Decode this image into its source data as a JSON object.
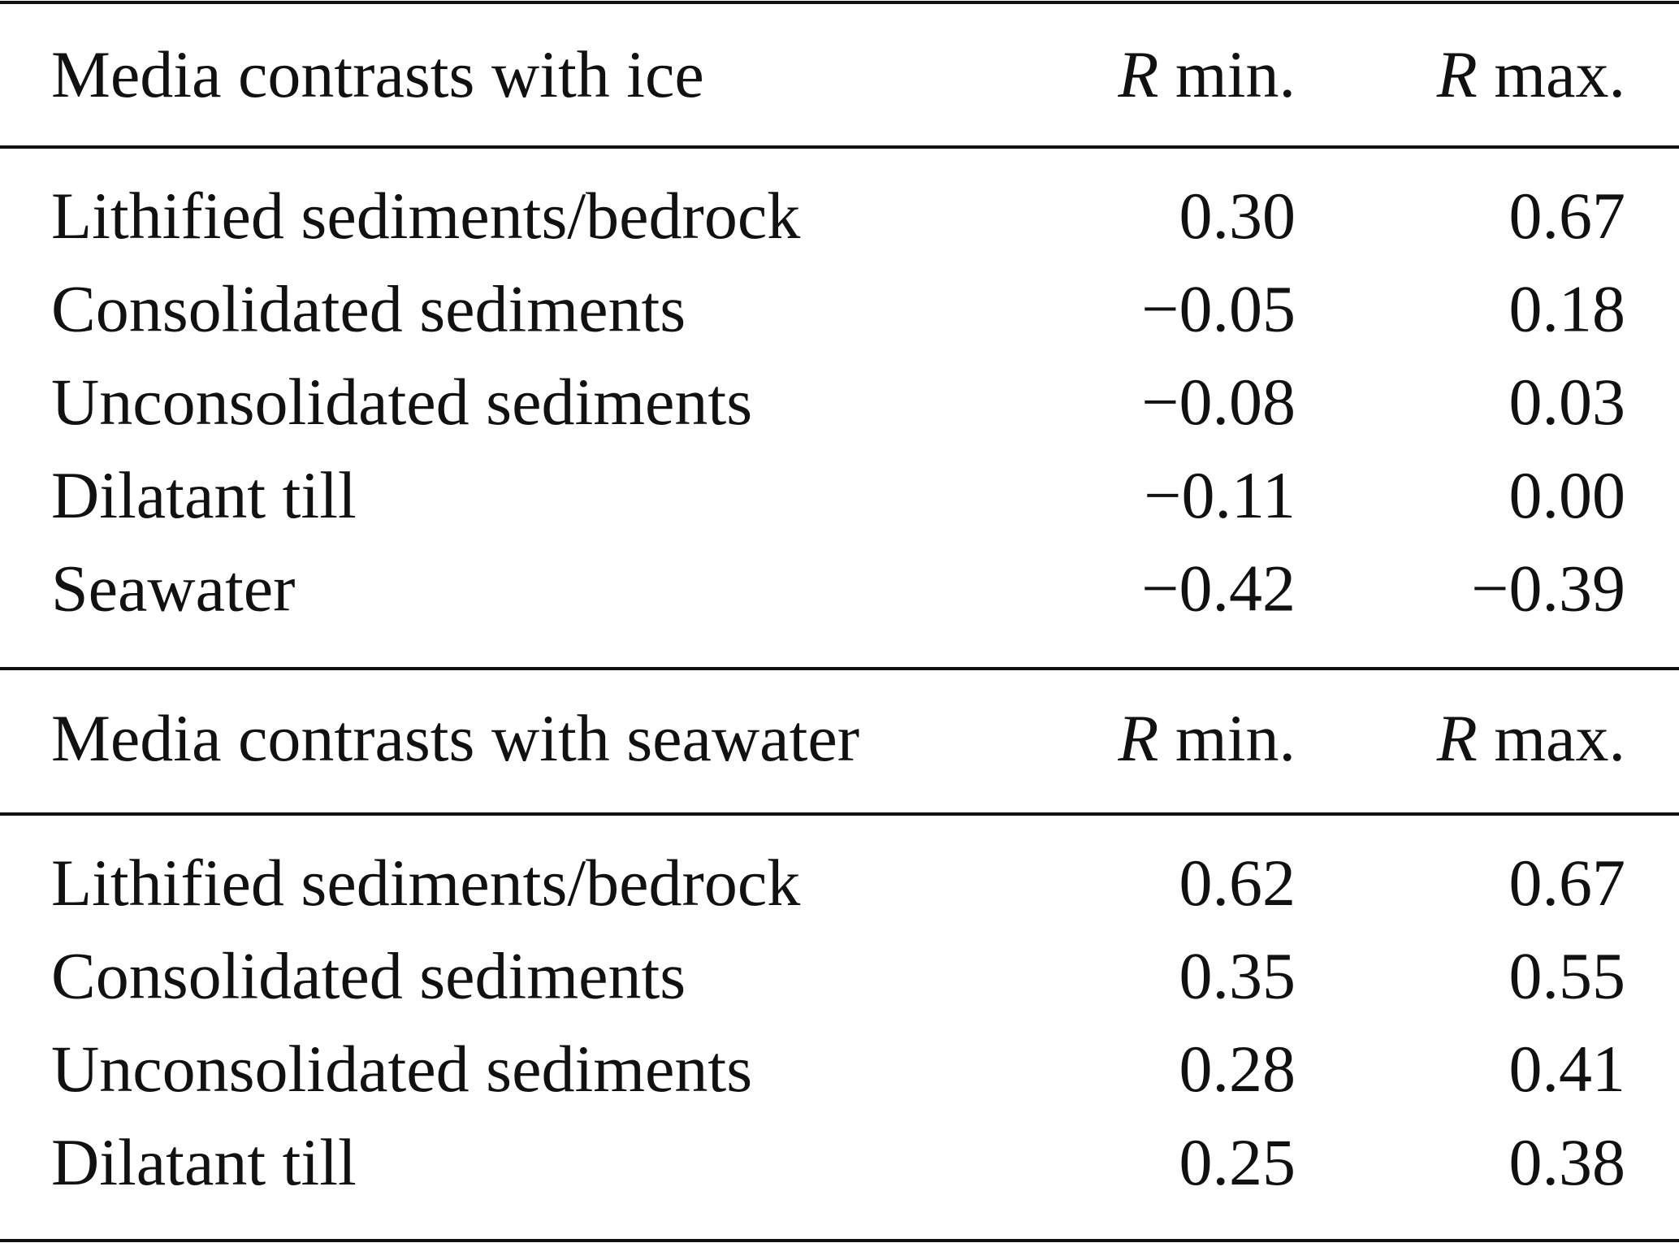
{
  "sections": [
    {
      "header": {
        "label": "Media contrasts with ice",
        "columns": [
          {
            "symbol": "R",
            "text": "min."
          },
          {
            "symbol": "R",
            "text": "max."
          }
        ]
      },
      "rows": [
        [
          "Lithified sediments/bedrock",
          "0.30",
          "0.67"
        ],
        [
          "Consolidated sediments",
          "−0.05",
          "0.18"
        ],
        [
          "Unconsolidated sediments",
          "−0.08",
          "0.03"
        ],
        [
          "Dilatant till",
          "−0.11",
          "0.00"
        ],
        [
          "Seawater",
          "−0.42",
          "−0.39"
        ]
      ]
    },
    {
      "header": {
        "label": "Media contrasts with seawater",
        "columns": [
          {
            "symbol": "R",
            "text": "min."
          },
          {
            "symbol": "R",
            "text": "max."
          }
        ]
      },
      "rows": [
        [
          "Lithified sediments/bedrock",
          "0.62",
          "0.67"
        ],
        [
          "Consolidated sediments",
          "0.35",
          "0.55"
        ],
        [
          "Unconsolidated sediments",
          "0.28",
          "0.41"
        ],
        [
          "Dilatant till",
          "0.25",
          "0.38"
        ]
      ]
    }
  ]
}
